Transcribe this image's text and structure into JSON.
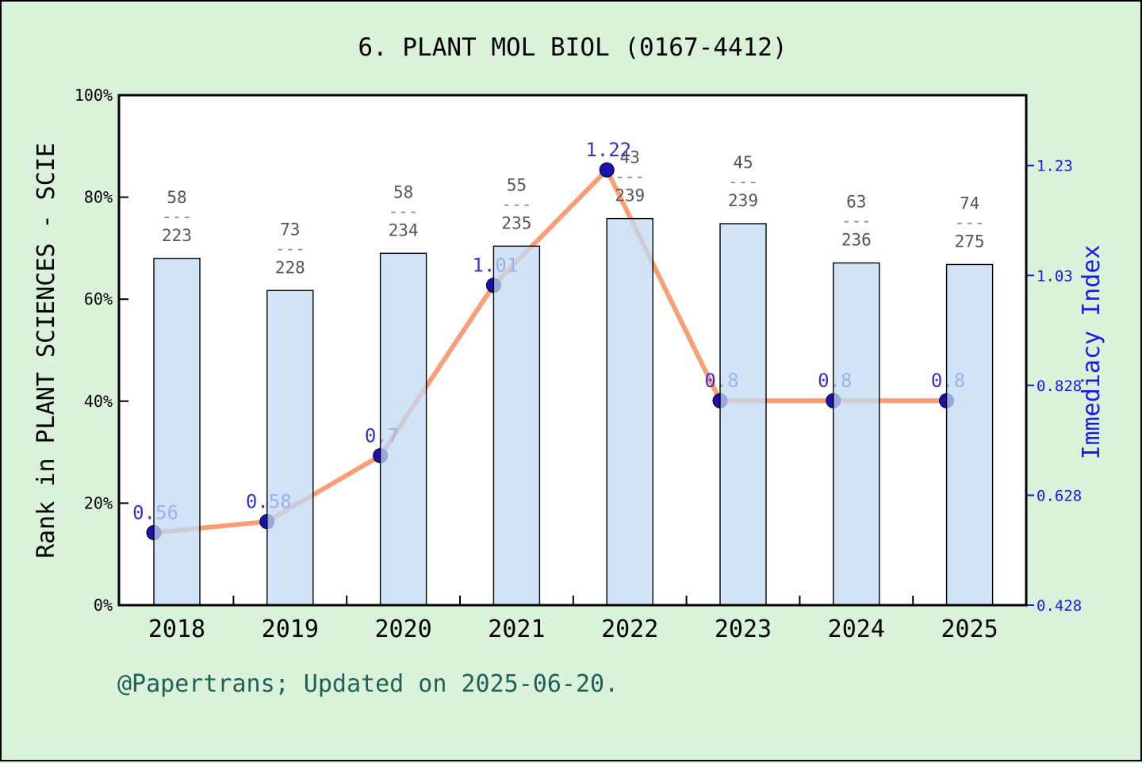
{
  "title": "6. PLANT MOL BIOL (0167-4412)",
  "footer": "@Papertrans; Updated on 2025-06-20.",
  "left_axis": {
    "label": "Rank in PLANT SCIENCES - SCIE",
    "ticks": [
      {
        "label": "0%",
        "value": 0
      },
      {
        "label": "20%",
        "value": 20
      },
      {
        "label": "40%",
        "value": 40
      },
      {
        "label": "60%",
        "value": 60
      },
      {
        "label": "80%",
        "value": 80
      },
      {
        "label": "100%",
        "value": 100
      }
    ]
  },
  "right_axis": {
    "label": "Immediacy Index",
    "ticks": [
      {
        "label": "0.428",
        "value": 0.428
      },
      {
        "label": "0.628",
        "value": 0.628
      },
      {
        "label": "0.828",
        "value": 0.828
      },
      {
        "label": "1.03",
        "value": 1.028
      },
      {
        "label": "1.23",
        "value": 1.228
      }
    ]
  },
  "chart_data": {
    "type": "bar+line",
    "title": "6. PLANT MOL BIOL (0167-4412)",
    "categories": [
      "2018",
      "2019",
      "2020",
      "2021",
      "2022",
      "2023",
      "2024",
      "2025"
    ],
    "left_ylim": [
      0,
      100
    ],
    "right_ylim": [
      0.428,
      1.356
    ],
    "grid": false,
    "legend": false,
    "series": [
      {
        "name": "Rank in PLANT SCIENCES - SCIE",
        "type": "bar",
        "axis": "left",
        "unit": "percent",
        "bar_height_percent": [
          68.0,
          61.7,
          69.0,
          70.4,
          75.8,
          74.8,
          67.1,
          66.8
        ],
        "rank_labels": [
          {
            "numerator": "58",
            "denominator": "223"
          },
          {
            "numerator": "73",
            "denominator": "228"
          },
          {
            "numerator": "58",
            "denominator": "234"
          },
          {
            "numerator": "55",
            "denominator": "235"
          },
          {
            "numerator": "43",
            "denominator": "239"
          },
          {
            "numerator": "45",
            "denominator": "239"
          },
          {
            "numerator": "63",
            "denominator": "236"
          },
          {
            "numerator": "74",
            "denominator": "275"
          }
        ]
      },
      {
        "name": "Immediacy Index",
        "type": "line",
        "axis": "right",
        "values": [
          0.56,
          0.58,
          0.7,
          1.01,
          1.22,
          0.8,
          0.8,
          0.8
        ],
        "point_labels": [
          "0.56",
          "0.58",
          "0.7",
          "1.01",
          "1.22",
          "0.8",
          "0.8",
          "0.8"
        ]
      }
    ]
  },
  "colors": {
    "background": "#d9f2d9",
    "plot_bg": "#ffffff",
    "axis": "#000000",
    "bar_fill": "#c1daf4",
    "bar_alpha": 0.75,
    "bar_edge": "#000000",
    "line": "#fa9e78",
    "marker": "#1a10b3",
    "marker_edge": "#000000",
    "point_label": "#3434cc",
    "right_axis_color": "#1a1ae6",
    "fraction_label": "#555555",
    "fraction_dash": "#8a8a8a",
    "year_label": "#000000",
    "footer_color": "#206059",
    "title_color": "#000000"
  }
}
